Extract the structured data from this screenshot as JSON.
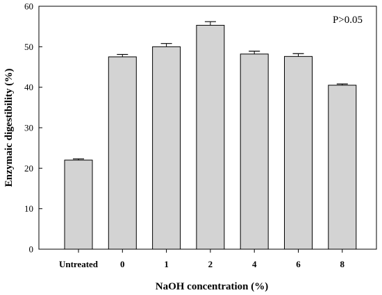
{
  "chart_data": {
    "type": "bar",
    "categories": [
      "Untreated",
      "0",
      "1",
      "2",
      "4",
      "6",
      "8"
    ],
    "values": [
      22.0,
      47.5,
      50.0,
      55.3,
      48.2,
      47.6,
      40.5
    ],
    "errors": [
      0.3,
      0.6,
      0.8,
      0.9,
      0.7,
      0.7,
      0.3
    ],
    "xlabel": "NaOH concentration (%)",
    "ylabel": "Enzymaic digestibility (%)",
    "ylim": [
      0,
      60
    ],
    "yticks": [
      0,
      10,
      20,
      30,
      40,
      50,
      60
    ],
    "annotation": "P>0.05",
    "annotation_position": "top-right",
    "grid": false,
    "bar_color": "#d3d3d3",
    "edge_color": "#000000"
  }
}
